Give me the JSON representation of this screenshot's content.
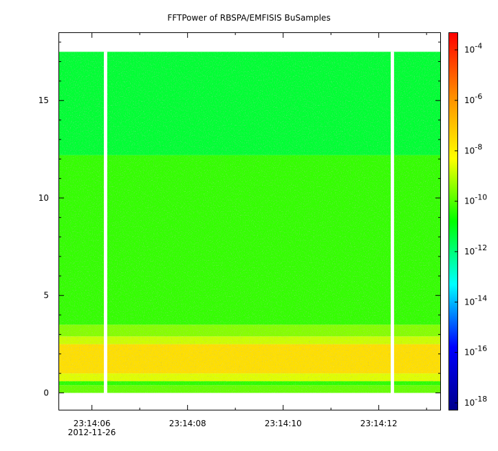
{
  "chart_data": {
    "type": "heatmap",
    "title": "FFTPower of RBSPA/EMFISIS  BuSamples",
    "xlabel": "",
    "ylabel": "",
    "x_range_seconds": [
      5.3,
      13.3
    ],
    "x_ticks": [
      {
        "value": 6,
        "label": "23:14:06"
      },
      {
        "value": 8,
        "label": "23:14:08"
      },
      {
        "value": 10,
        "label": "23:14:10"
      },
      {
        "value": 12,
        "label": "23:14:12"
      }
    ],
    "x_minor_ticks": [
      7,
      9,
      11,
      13
    ],
    "x_date_label": "2012-11-26",
    "ylim": [
      -0.9,
      18.5
    ],
    "y_ticks": [
      0,
      5,
      10,
      15
    ],
    "y_minor_ticks": [
      1,
      2,
      3,
      4,
      6,
      7,
      8,
      9,
      11,
      12,
      13,
      14,
      16,
      17,
      18
    ],
    "data_extent": {
      "x": [
        5.3,
        13.3
      ],
      "y": [
        0.0,
        17.5
      ]
    },
    "data_gaps_seconds": [
      [
        6.25,
        6.32
      ],
      [
        12.25,
        12.32
      ]
    ],
    "bands": [
      {
        "y": [
          0.0,
          0.4
        ],
        "log10_power": -9.8
      },
      {
        "y": [
          0.4,
          0.6
        ],
        "log10_power": -10.4
      },
      {
        "y": [
          0.6,
          1.0
        ],
        "log10_power": -8.6
      },
      {
        "y": [
          1.0,
          2.5
        ],
        "log10_power": -7.6
      },
      {
        "y": [
          2.5,
          2.9
        ],
        "log10_power": -8.8
      },
      {
        "y": [
          2.9,
          3.5
        ],
        "log10_power": -9.5
      },
      {
        "y": [
          3.5,
          12.2
        ],
        "log10_power": -10.3
      },
      {
        "y": [
          12.2,
          17.5
        ],
        "log10_power": -11.3
      }
    ],
    "colorbar": {
      "scale": "log",
      "range_log10": [
        -18.3,
        -3.3
      ],
      "ticks": [
        {
          "log10": -4,
          "base": "10",
          "exp": "-4"
        },
        {
          "log10": -6,
          "base": "10",
          "exp": "-6"
        },
        {
          "log10": -8,
          "base": "10",
          "exp": "-8"
        },
        {
          "log10": -10,
          "base": "10",
          "exp": "-10"
        },
        {
          "log10": -12,
          "base": "10",
          "exp": "-12"
        },
        {
          "log10": -14,
          "base": "10",
          "exp": "-14"
        },
        {
          "log10": -16,
          "base": "10",
          "exp": "-16"
        },
        {
          "log10": -18,
          "base": "10",
          "exp": "-18"
        }
      ],
      "colormap": [
        "#00008b",
        "#0000ff",
        "#00ffff",
        "#00ff00",
        "#ffff00",
        "#ff8c00",
        "#ff0000"
      ]
    },
    "grid": false,
    "legend": "none"
  }
}
